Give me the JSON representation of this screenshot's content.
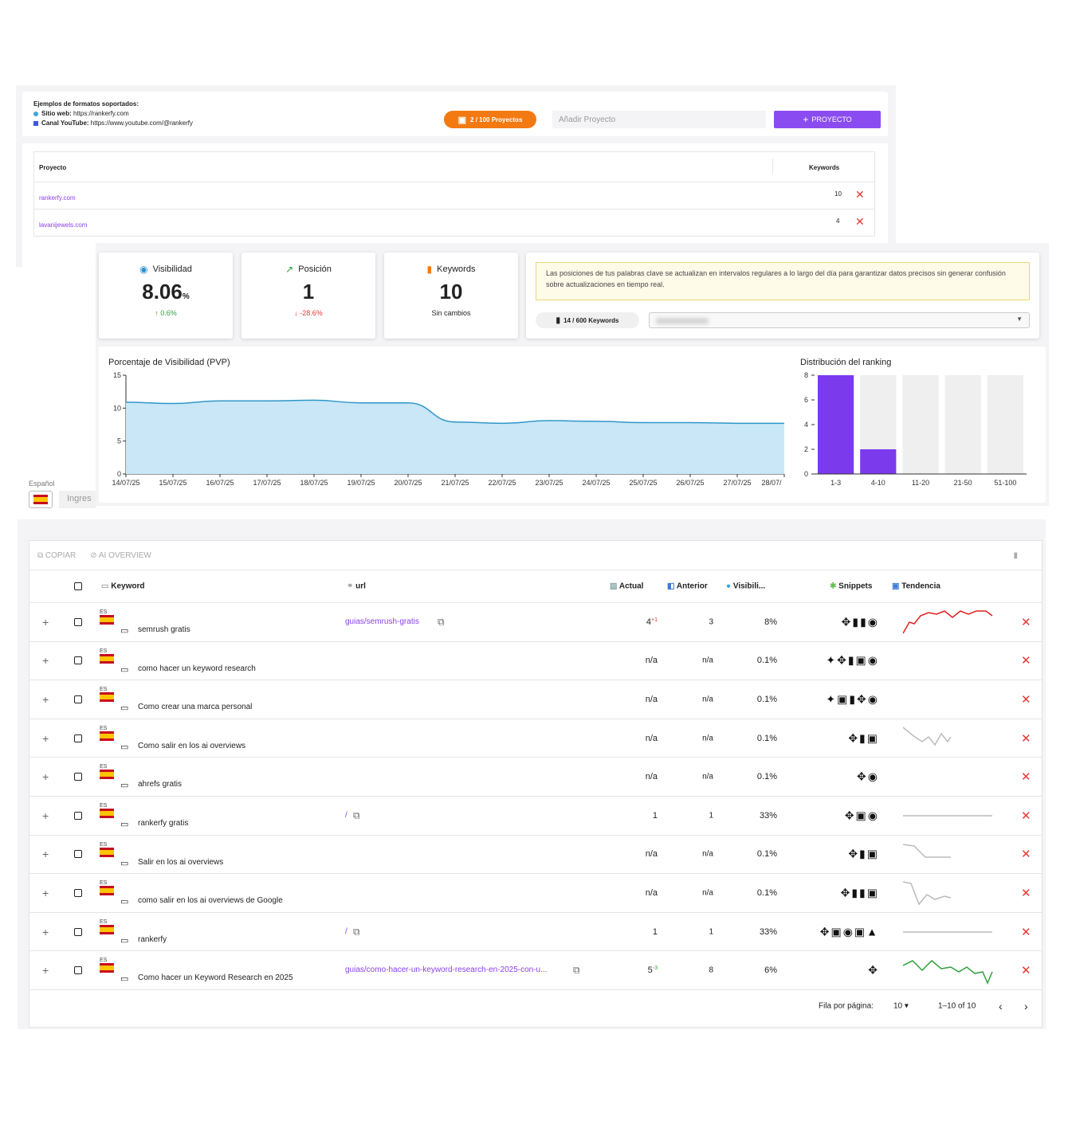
{
  "projects_panel": {
    "formats_title": "Ejemplos de formatos soportados:",
    "web_label": "Sitio web:",
    "web_example": "https://rankerfy.com",
    "yt_label": "Canal YouTube:",
    "yt_example": "https://www.youtube.com/@rankerfy",
    "projects_count": "2 / 100 Proyectos",
    "add_placeholder": "Añadir Proyecto",
    "add_button": "PROYECTO",
    "col_project": "Proyecto",
    "col_keywords": "Keywords",
    "rows": [
      {
        "name": "rankerfy.com",
        "keywords": "10"
      },
      {
        "name": "lavanijewels.com",
        "keywords": "4"
      }
    ]
  },
  "stats": {
    "visibility": {
      "label": "Visibilidad",
      "value": "8.06",
      "unit": "%",
      "delta": "0.6%"
    },
    "position": {
      "label": "Posición",
      "value": "1",
      "delta": "-28.6%"
    },
    "keywords": {
      "label": "Keywords",
      "value": "10",
      "note": "Sin cambios"
    },
    "notice": "Las posiciones de tus palabras clave se actualizan en intervalos regulares a lo largo del día para garantizar datos precisos sin generar confusión sobre actualizaciones en tiempo real.",
    "kw_usage": "14 / 600 Keywords"
  },
  "chart_data": [
    {
      "type": "area",
      "title": "Porcentaje de Visibilidad (PVP)",
      "x": [
        "14/07/25",
        "15/07/25",
        "16/07/25",
        "17/07/25",
        "18/07/25",
        "19/07/25",
        "20/07/25",
        "21/07/25",
        "22/07/25",
        "23/07/25",
        "24/07/25",
        "25/07/25",
        "26/07/25",
        "27/07/25",
        "28/07/"
      ],
      "values": [
        10.9,
        10.7,
        11.1,
        11.1,
        11.2,
        10.8,
        10.8,
        7.9,
        7.7,
        8.1,
        8.0,
        7.8,
        7.8,
        7.7,
        7.7
      ],
      "ylim": [
        0,
        15
      ],
      "yticks": [
        0,
        5,
        10,
        15
      ],
      "color": "#c9e7f6",
      "line_color": "#2f97c9"
    },
    {
      "type": "bar",
      "title": "Distribución del ranking",
      "categories": [
        "1-3",
        "4-10",
        "11-20",
        "21-50",
        "51-100"
      ],
      "values": [
        8,
        2,
        0,
        0,
        0
      ],
      "ylim": [
        0,
        8
      ],
      "yticks": [
        0,
        2,
        4,
        6,
        8
      ],
      "color": "#7c3aed",
      "bg_color": "#efefef"
    }
  ],
  "lang": {
    "label": "Español",
    "input_placeholder": "Ingres"
  },
  "keywords_table": {
    "copy": "COPIAR",
    "ai": "AI OVERVIEW",
    "headers": {
      "keyword": "Keyword",
      "url": "url",
      "actual": "Actual",
      "anterior": "Anterior",
      "visibility": "Visibili...",
      "snippets": "Snippets",
      "trend": "Tendencia"
    },
    "rows": [
      {
        "country": "ES",
        "keyword": "semrush gratis",
        "url": "guias/semrush-gratis",
        "actual": "4",
        "delta": "+1",
        "anterior": "3",
        "vis": "8%",
        "snippets": "✥▮▮◉",
        "trend": "red"
      },
      {
        "country": "ES",
        "keyword": "como hacer un keyword research",
        "url": "",
        "actual": "n/a",
        "delta": "",
        "anterior": "n/a",
        "vis": "0.1%",
        "snippets": "✦✥▮▣◉",
        "trend": ""
      },
      {
        "country": "ES",
        "keyword": "Como crear una marca personal",
        "url": "",
        "actual": "n/a",
        "delta": "",
        "anterior": "n/a",
        "vis": "0.1%",
        "snippets": "✦▣▮✥◉",
        "trend": ""
      },
      {
        "country": "ES",
        "keyword": "Como salir en los ai overviews",
        "url": "",
        "actual": "n/a",
        "delta": "",
        "anterior": "n/a",
        "vis": "0.1%",
        "snippets": "✥▮▣",
        "trend": "grey1"
      },
      {
        "country": "ES",
        "keyword": "ahrefs gratis",
        "url": "",
        "actual": "n/a",
        "delta": "",
        "anterior": "n/a",
        "vis": "0.1%",
        "snippets": "✥◉",
        "trend": ""
      },
      {
        "country": "ES",
        "keyword": "rankerfy gratis",
        "url": "/",
        "actual": "1",
        "delta": "",
        "anterior": "1",
        "vis": "33%",
        "snippets": "✥▣◉",
        "trend": "flat"
      },
      {
        "country": "ES",
        "keyword": "Salir en los ai overviews",
        "url": "",
        "actual": "n/a",
        "delta": "",
        "anterior": "n/a",
        "vis": "0.1%",
        "snippets": "✥▮▣",
        "trend": "grey2"
      },
      {
        "country": "ES",
        "keyword": "como salir en los ai overviews de Google",
        "url": "",
        "actual": "n/a",
        "delta": "",
        "anterior": "n/a",
        "vis": "0.1%",
        "snippets": "✥▮▮▣",
        "trend": "grey3"
      },
      {
        "country": "ES",
        "keyword": "rankerfy",
        "url": "/",
        "actual": "1",
        "delta": "",
        "anterior": "1",
        "vis": "33%",
        "snippets": "✥▣◉▣▲",
        "trend": "flat"
      },
      {
        "country": "ES",
        "keyword": "Como hacer un Keyword Research en 2025",
        "url": "guias/como-hacer-un-keyword-research-en-2025-con-u...",
        "actual": "5",
        "delta": "-3",
        "anterior": "8",
        "vis": "6%",
        "snippets": "✥",
        "trend": "green"
      }
    ],
    "rows_per_page_label": "Fila por página:",
    "rows_per_page": "10",
    "range": "1–10 of 10"
  }
}
